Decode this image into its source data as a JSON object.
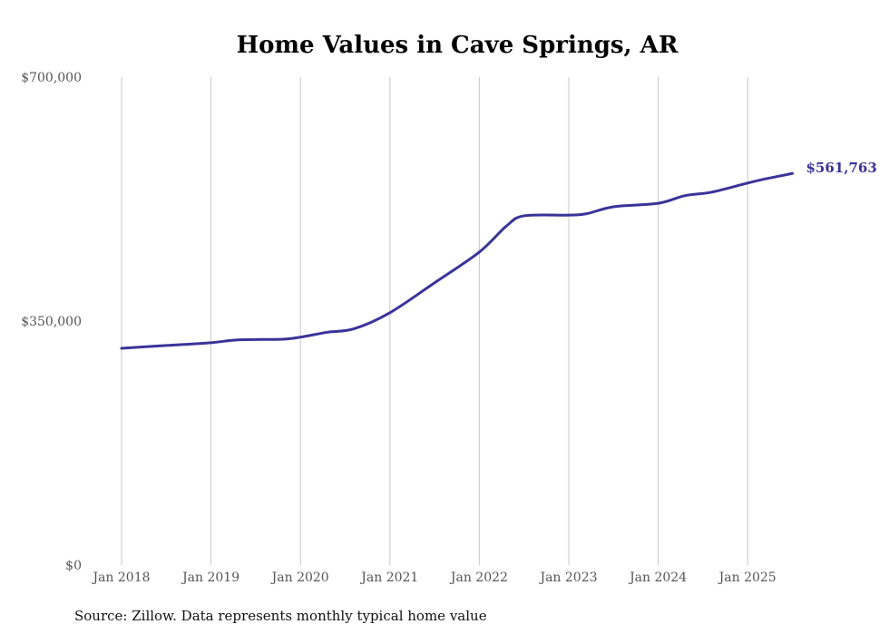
{
  "chart_data": {
    "type": "line",
    "title": "Home Values in Cave Springs, AR",
    "source": "Source: Zillow. Data represents monthly typical home value",
    "xlabel": "",
    "ylabel": "",
    "ylim": [
      0,
      700000
    ],
    "xlim": [
      2018.0,
      2025.5
    ],
    "y_ticks": [
      {
        "value": 0,
        "label": "$0"
      },
      {
        "value": 350000,
        "label": "$350,000"
      },
      {
        "value": 700000,
        "label": "$700,000"
      }
    ],
    "x_ticks": [
      {
        "value": 2018,
        "label": "Jan 2018"
      },
      {
        "value": 2019,
        "label": "Jan 2019"
      },
      {
        "value": 2020,
        "label": "Jan 2020"
      },
      {
        "value": 2021,
        "label": "Jan 2021"
      },
      {
        "value": 2022,
        "label": "Jan 2022"
      },
      {
        "value": 2023,
        "label": "Jan 2023"
      },
      {
        "value": 2024,
        "label": "Jan 2024"
      },
      {
        "value": 2025,
        "label": "Jan 2025"
      }
    ],
    "grid": "vertical",
    "series": [
      {
        "name": "Home value",
        "color": "#3a3399",
        "x": [
          2018.0,
          2018.5,
          2019.0,
          2019.3,
          2019.8,
          2020.0,
          2020.3,
          2020.6,
          2021.0,
          2021.5,
          2022.0,
          2022.3,
          2022.5,
          2023.0,
          2023.2,
          2023.5,
          2024.0,
          2024.3,
          2024.6,
          2025.0,
          2025.2,
          2025.5
        ],
        "y": [
          311000,
          315000,
          319000,
          323000,
          324000,
          327000,
          334000,
          339000,
          362000,
          405000,
          449000,
          486000,
          501000,
          502000,
          504000,
          514000,
          519000,
          530000,
          535000,
          548000,
          554000,
          561763
        ]
      }
    ],
    "end_label": "$561,763"
  }
}
